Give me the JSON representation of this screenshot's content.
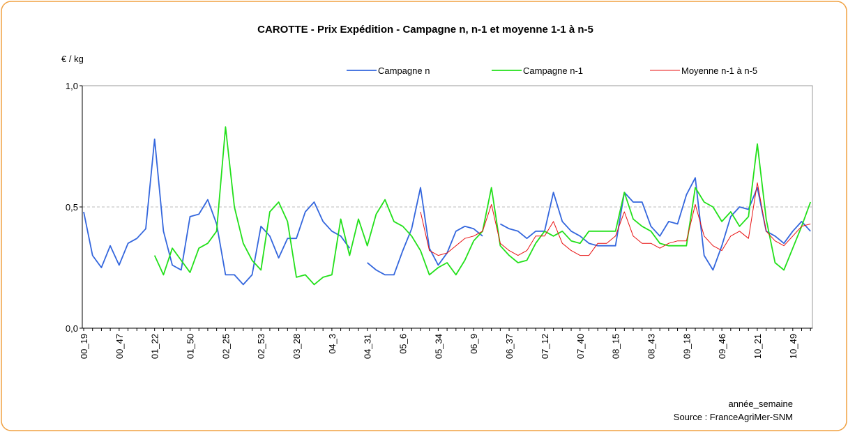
{
  "chart_data": {
    "type": "line",
    "title": "CAROTTE - Prix Expédition - Campagne n, n-1 et moyenne 1-1 à n-5",
    "y_label": "€ / kg",
    "x_label": "année_semaine",
    "source": "Source : FranceAgriMer-SNM",
    "categories": [
      "00_19",
      null,
      null,
      null,
      "00_47",
      null,
      null,
      null,
      "01_22",
      null,
      null,
      null,
      "01_50",
      null,
      null,
      null,
      "02_25",
      null,
      null,
      null,
      "02_53",
      null,
      null,
      null,
      "03_28",
      null,
      null,
      null,
      "04_3",
      null,
      null,
      null,
      "04_31",
      null,
      null,
      null,
      "05_6",
      null,
      null,
      null,
      "05_34",
      null,
      null,
      null,
      "06_9",
      null,
      null,
      null,
      "06_37",
      null,
      null,
      null,
      "07_12",
      null,
      null,
      null,
      "07_40",
      null,
      null,
      null,
      "08_15",
      null,
      null,
      null,
      "08_43",
      null,
      null,
      null,
      "09_18",
      null,
      null,
      null,
      "09_46",
      null,
      null,
      null,
      "10_21",
      null,
      null,
      null,
      "10_49",
      null,
      null
    ],
    "series": [
      {
        "name": "Campagne n",
        "color": "#3366dd",
        "values": [
          0.48,
          0.3,
          0.25,
          0.34,
          0.26,
          0.35,
          0.37,
          0.41,
          0.78,
          0.4,
          0.26,
          0.24,
          0.46,
          0.47,
          0.53,
          0.43,
          0.22,
          0.22,
          0.18,
          0.22,
          0.42,
          0.38,
          0.29,
          0.37,
          0.37,
          0.48,
          0.52,
          0.44,
          0.4,
          0.38,
          0.33,
          null,
          0.27,
          0.24,
          0.22,
          0.22,
          0.32,
          0.41,
          0.58,
          0.33,
          0.26,
          0.31,
          0.4,
          0.42,
          0.41,
          0.38,
          null,
          0.43,
          0.41,
          0.4,
          0.37,
          0.4,
          0.4,
          0.56,
          0.44,
          0.4,
          0.38,
          0.35,
          0.34,
          0.34,
          0.34,
          0.56,
          0.52,
          0.52,
          0.42,
          0.38,
          0.44,
          0.43,
          0.55,
          0.62,
          0.3,
          0.24,
          0.34,
          0.46,
          0.5,
          0.49,
          0.58,
          0.4,
          0.38,
          0.35,
          0.4,
          0.44,
          0.4
        ]
      },
      {
        "name": "Campagne n-1",
        "color": "#22e01a",
        "values": [
          null,
          null,
          null,
          null,
          null,
          null,
          null,
          null,
          0.3,
          0.22,
          0.33,
          0.28,
          0.23,
          0.33,
          0.35,
          0.4,
          0.83,
          0.5,
          0.35,
          0.28,
          0.24,
          0.48,
          0.52,
          0.44,
          0.21,
          0.22,
          0.18,
          0.21,
          0.22,
          0.45,
          0.3,
          0.45,
          0.34,
          0.47,
          0.53,
          0.44,
          0.42,
          0.38,
          0.32,
          0.22,
          0.25,
          0.27,
          0.22,
          0.28,
          0.36,
          0.4,
          0.58,
          0.34,
          0.3,
          0.27,
          0.28,
          0.35,
          0.4,
          0.38,
          0.4,
          0.36,
          0.35,
          0.4,
          0.4,
          0.4,
          0.4,
          0.56,
          0.45,
          0.42,
          0.4,
          0.35,
          0.34,
          0.34,
          0.34,
          0.58,
          0.52,
          0.5,
          0.44,
          0.48,
          0.42,
          0.46,
          0.76,
          0.45,
          0.27,
          0.24,
          0.33,
          0.42,
          0.52
        ]
      },
      {
        "name": "Moyenne n-1 à n-5",
        "color": "#e81010",
        "values": [
          null,
          null,
          null,
          null,
          null,
          null,
          null,
          null,
          null,
          null,
          null,
          null,
          null,
          null,
          null,
          null,
          null,
          null,
          null,
          null,
          null,
          null,
          null,
          null,
          null,
          null,
          null,
          null,
          null,
          null,
          null,
          null,
          null,
          null,
          null,
          null,
          null,
          null,
          0.48,
          0.32,
          0.3,
          0.31,
          0.34,
          0.37,
          0.38,
          0.4,
          0.51,
          0.35,
          0.32,
          0.3,
          0.32,
          0.38,
          0.38,
          0.44,
          0.35,
          0.32,
          0.3,
          0.3,
          0.35,
          0.35,
          0.38,
          0.48,
          0.38,
          0.35,
          0.35,
          0.33,
          0.35,
          0.36,
          0.36,
          0.51,
          0.38,
          0.34,
          0.32,
          0.38,
          0.4,
          0.37,
          0.6,
          0.4,
          0.36,
          0.34,
          0.38,
          0.42,
          0.43
        ]
      }
    ],
    "ylim": [
      0,
      1
    ],
    "yticks": [
      {
        "value": 0,
        "label": "0,0"
      },
      {
        "value": 0.5,
        "label": "0,5"
      },
      {
        "value": 1,
        "label": "1,0"
      }
    ],
    "grid": true
  }
}
